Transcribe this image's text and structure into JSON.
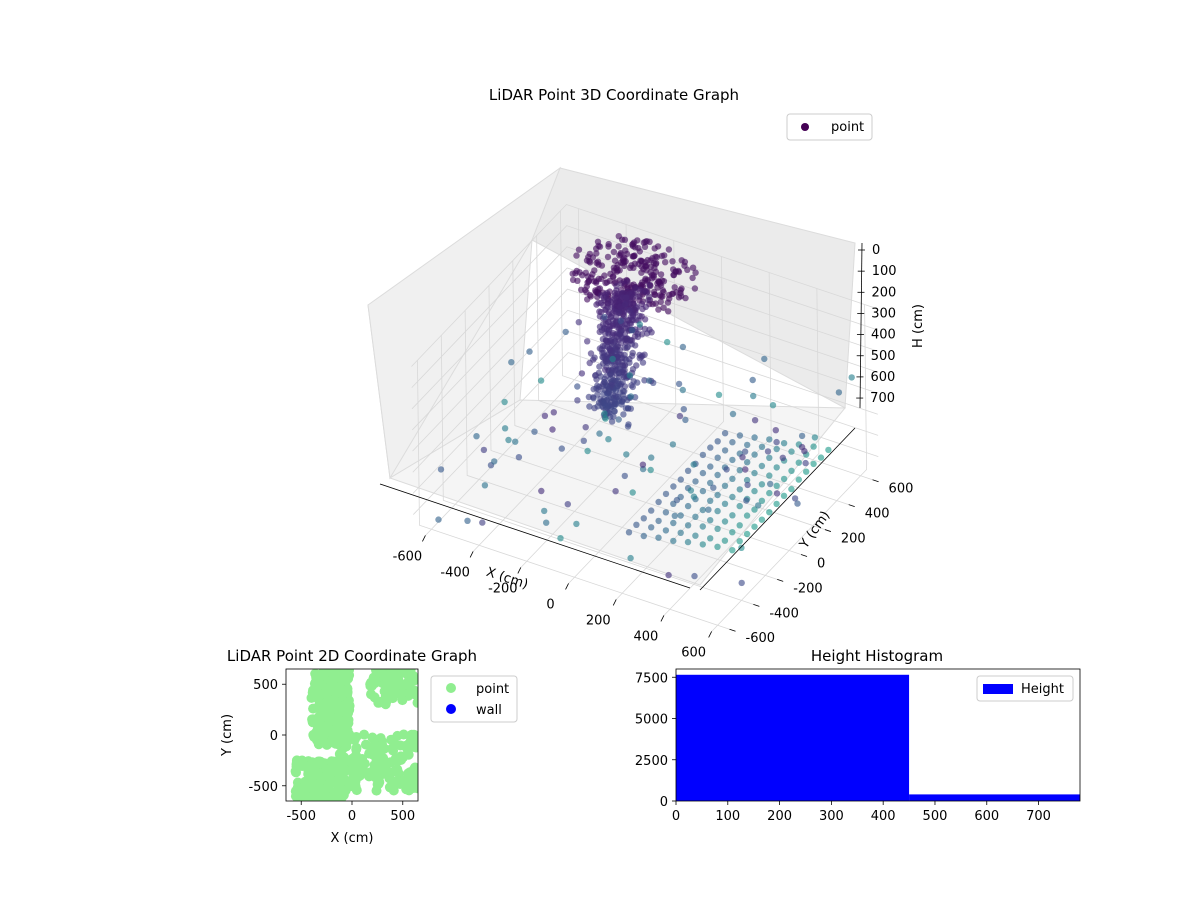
{
  "chart_data": [
    {
      "type": "scatter",
      "projection": "3d",
      "title": "LiDAR Point 3D Coordinate Graph",
      "xlabel": "X (cm)",
      "ylabel": "Y (cm)",
      "zlabel": "H (cm)",
      "xticks": [
        -600,
        -400,
        -200,
        0,
        200,
        400,
        600
      ],
      "yticks": [
        -600,
        -400,
        -200,
        0,
        200,
        400,
        600
      ],
      "zticks": [
        0,
        100,
        200,
        300,
        400,
        500,
        600,
        700
      ],
      "xlim": [
        -650,
        650
      ],
      "ylim": [
        -650,
        650
      ],
      "zlim": [
        0,
        780
      ],
      "zaxis_inverted": true,
      "grid": true,
      "legend": {
        "position": "top-right",
        "entries": [
          {
            "label": "point",
            "color": "#440154"
          }
        ]
      },
      "colormap": "viridis (colored by height)",
      "series": [
        {
          "name": "point"
        }
      ]
    },
    {
      "type": "scatter",
      "title": "LiDAR Point 2D Coordinate Graph",
      "xlabel": "X (cm)",
      "ylabel": "Y (cm)",
      "xticks": [
        -500,
        0,
        500
      ],
      "yticks": [
        -500,
        0,
        500
      ],
      "xlim": [
        -650,
        650
      ],
      "ylim": [
        -650,
        650
      ],
      "legend": {
        "position": "outside-right",
        "entries": [
          {
            "label": "point",
            "color": "#90ee90"
          },
          {
            "label": "wall",
            "color": "#0000ff"
          }
        ]
      },
      "series": [
        {
          "name": "point",
          "color": "#90ee90"
        },
        {
          "name": "wall",
          "color": "#0000ff"
        }
      ]
    },
    {
      "type": "bar",
      "subtype": "histogram",
      "title": "Height Histogram",
      "xticks": [
        0,
        100,
        200,
        300,
        400,
        500,
        600,
        700
      ],
      "yticks": [
        0,
        2500,
        5000,
        7500
      ],
      "xlim": [
        0,
        780
      ],
      "ylim": [
        0,
        8000
      ],
      "bins": [
        {
          "start": 0,
          "end": 450,
          "count": 7650
        },
        {
          "start": 450,
          "end": 780,
          "count": 400
        }
      ],
      "color": "#0000ff",
      "legend": {
        "position": "top-right",
        "entries": [
          {
            "label": "Height",
            "color": "#0000ff"
          }
        ]
      },
      "series": [
        {
          "name": "Height"
        }
      ]
    }
  ]
}
